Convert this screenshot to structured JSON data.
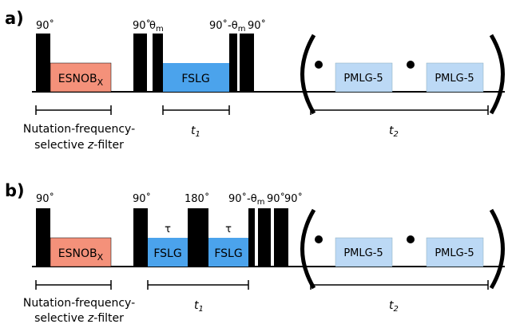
{
  "panel_a": {
    "label": "a)",
    "pulse_labels": {
      "p1": "90˚",
      "p2": "90˚",
      "p3": "θ",
      "p3_sub": "m",
      "p4": "90˚-θ",
      "p4_sub": "m",
      "p5": "90˚"
    },
    "boxes": {
      "esnob": "ESNOB",
      "esnob_sub": "X",
      "fslg": "FSLG",
      "pmlg1": "PMLG-5",
      "pmlg2": "PMLG-5"
    },
    "filter_line1": "Nutation-frequency-",
    "filter_line2_pre": "selective ",
    "filter_line2_z": "z",
    "filter_line2_post": "-filter",
    "t1": "t",
    "t1_sub": "1",
    "t2": "t",
    "t2_sub": "2"
  },
  "panel_b": {
    "label": "b)",
    "pulse_labels": {
      "p1": "90˚",
      "p2": "90˚",
      "p3": "180˚",
      "p4": "90˚-θ",
      "p4_sub": "m",
      "p5": "90˚",
      "p6": "90˚"
    },
    "tau1": "τ",
    "tau2": "τ",
    "boxes": {
      "esnob": "ESNOB",
      "esnob_sub": "X",
      "fslg1": "FSLG",
      "fslg2": "FSLG",
      "pmlg1": "PMLG-5",
      "pmlg2": "PMLG-5"
    },
    "filter_line1": "Nutation-frequency-",
    "filter_line2_pre": "selective ",
    "filter_line2_z": "z",
    "filter_line2_post": "-filter",
    "t1": "t",
    "t1_sub": "1",
    "t2": "t",
    "t2_sub": "2"
  },
  "colors": {
    "esnob": "#f4917a",
    "fslg": "#4ba3ec",
    "pmlg": "#bcd9f5",
    "pulse": "#000000"
  }
}
